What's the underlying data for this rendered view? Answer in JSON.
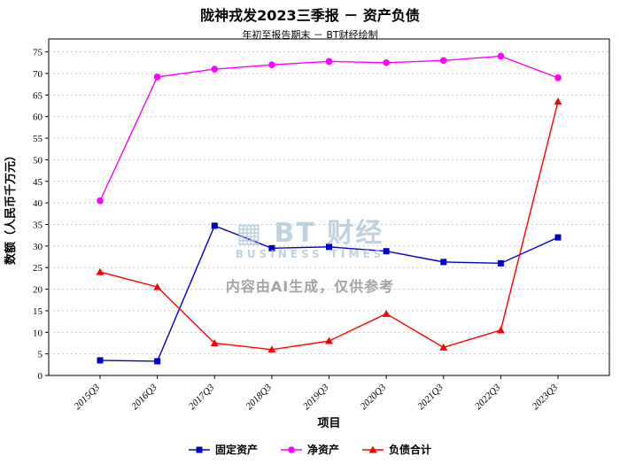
{
  "header": {
    "title": "陇神戎发2023三季报 － 资产负债",
    "subtitle": "年初至报告期末 － BT财经绘制"
  },
  "watermark": {
    "logo_icon": "▦",
    "logo_text": "BT 财经",
    "logo_subtext": "BUSINESS TIMES",
    "ai_note": "内容由AI生成，仅供参考"
  },
  "chart_data": {
    "type": "line",
    "title": "陇神戎发2023三季报 － 资产负债",
    "subtitle": "年初至报告期末 － BT财经绘制",
    "xlabel": "项目",
    "ylabel": "数额（人民币千万元）",
    "categories": [
      "2015Q3",
      "2016Q3",
      "2017Q3",
      "2018Q3",
      "2019Q3",
      "2020Q3",
      "2021Q3",
      "2022Q3",
      "2023Q3"
    ],
    "series": [
      {
        "name": "固定资产",
        "color": "#0000cd",
        "marker": "square",
        "values": [
          3.5,
          3.3,
          34.7,
          29.5,
          29.8,
          28.8,
          26.3,
          26.0,
          32.0
        ]
      },
      {
        "name": "净资产",
        "color": "#ff00ff",
        "marker": "circle",
        "values": [
          40.5,
          69.2,
          71.0,
          72.0,
          72.8,
          72.5,
          73.0,
          74.0,
          69.0
        ]
      },
      {
        "name": "负债合计",
        "color": "#ff0000",
        "marker": "triangle",
        "values": [
          24.0,
          20.5,
          7.5,
          6.0,
          8.0,
          14.3,
          6.5,
          10.5,
          63.5
        ]
      }
    ],
    "ylim": [
      0,
      78
    ],
    "ytick_step": 5,
    "grid": "horizontal-dashed",
    "legend_position": "bottom"
  }
}
